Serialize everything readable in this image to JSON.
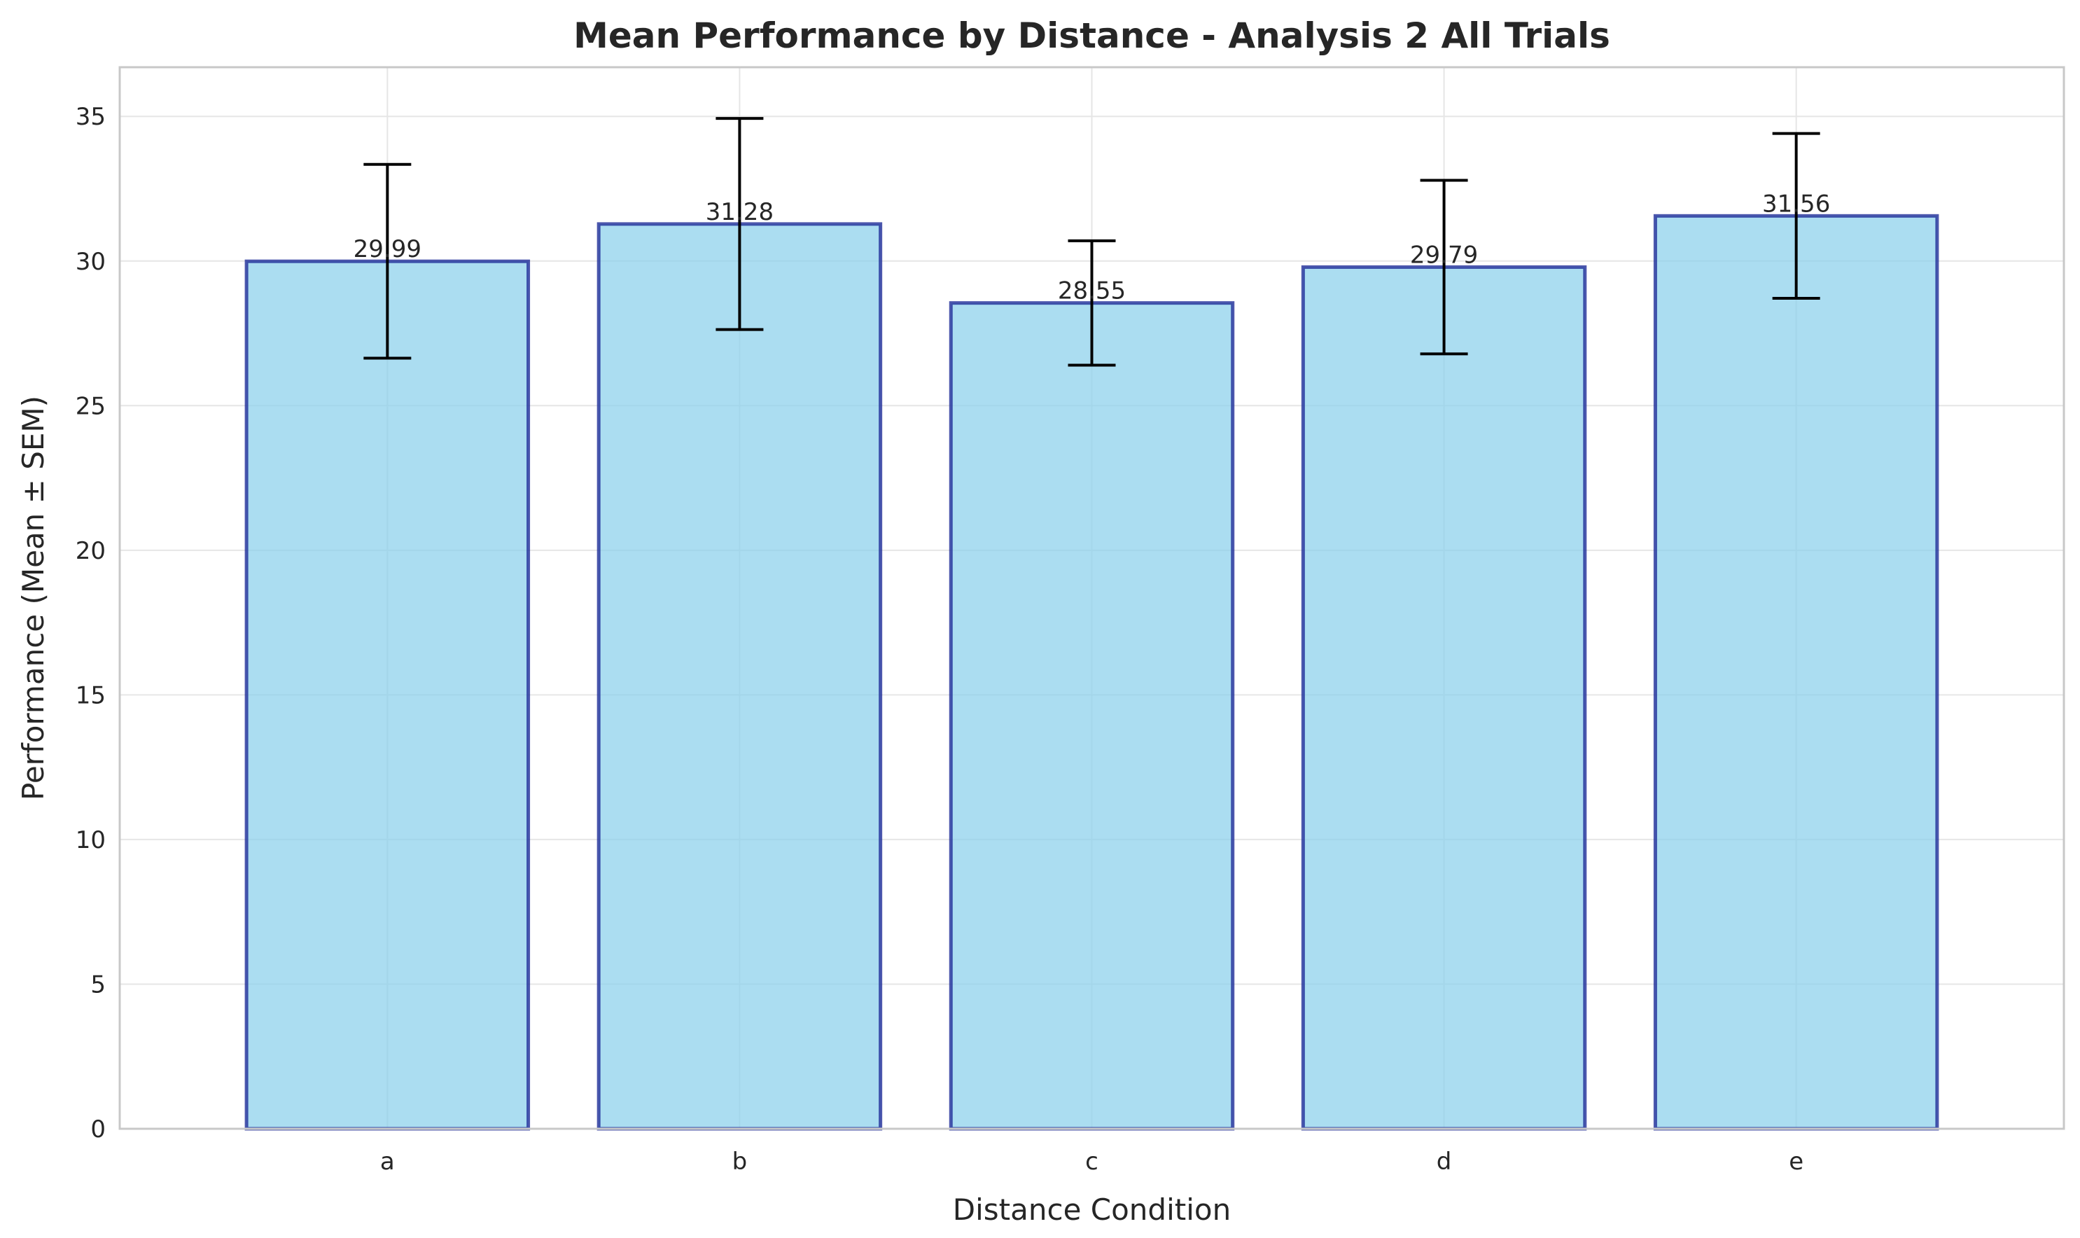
{
  "chart_data": {
    "type": "bar",
    "title": "Mean Performance by Distance - Analysis 2 All Trials",
    "xlabel": "Distance Condition",
    "ylabel": "Performance (Mean ± SEM)",
    "categories": [
      "a",
      "b",
      "c",
      "d",
      "e"
    ],
    "values": [
      29.99,
      31.28,
      28.55,
      29.79,
      31.56
    ],
    "value_labels": [
      "29.99",
      "31.28",
      "28.55",
      "29.79",
      "31.56"
    ],
    "error": [
      3.35,
      3.65,
      2.15,
      3.0,
      2.85
    ],
    "ylim": [
      0,
      36.7
    ],
    "yticks": [
      0,
      5,
      10,
      15,
      20,
      25,
      30,
      35
    ],
    "grid": true,
    "colors": {
      "bar_fill": "#87ceeb",
      "bar_edge": "#1f2d99",
      "error_bar": "#000000",
      "grid": "#e6e6e6",
      "frame": "#c8c8c8",
      "text": "#262626"
    }
  }
}
